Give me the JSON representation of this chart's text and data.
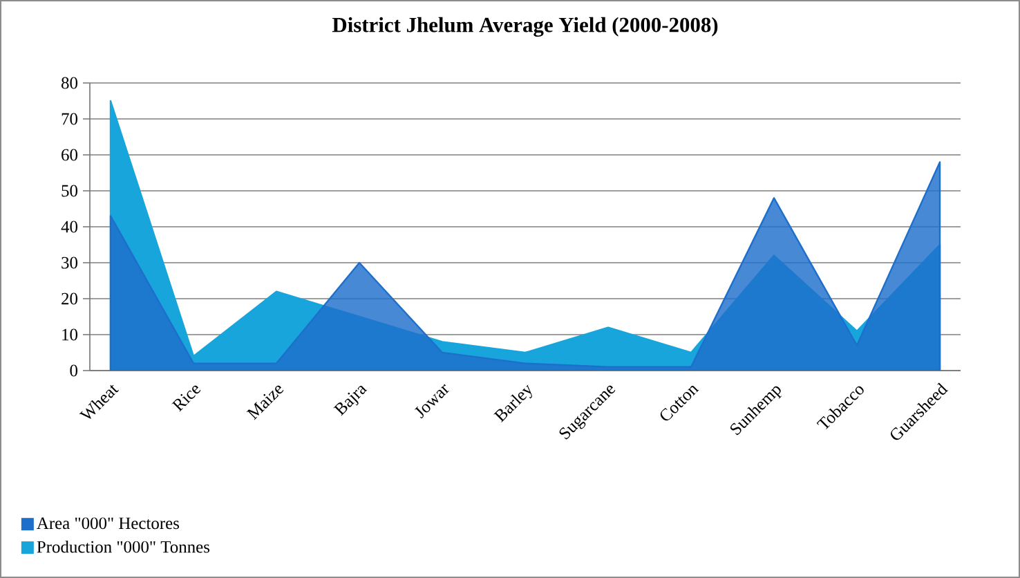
{
  "chart_data": {
    "type": "area",
    "title": "District Jhelum Average Yield (2000-2008)",
    "categories": [
      "Wheat",
      "Rice",
      "Maize",
      "Bajra",
      "Jowar",
      "Barley",
      "Sugarcane",
      "Cotton",
      "Sunhemp",
      "Tobacco",
      "Guarsheed"
    ],
    "series": [
      {
        "name": "Area \"000\" Hectores",
        "color": "#1e6fcb",
        "values": [
          43,
          2,
          2,
          30,
          5,
          2,
          1,
          1,
          48,
          7,
          58
        ]
      },
      {
        "name": "Production \"000\" Tonnes",
        "color": "#18a5dc",
        "values": [
          75,
          4,
          22,
          15,
          8,
          5,
          12,
          5,
          32,
          11,
          35
        ]
      }
    ],
    "ylim": [
      0,
      80
    ],
    "yticks": [
      0,
      10,
      20,
      30,
      40,
      50,
      60,
      70,
      80
    ],
    "grid": "y",
    "legend": "bottom left"
  }
}
